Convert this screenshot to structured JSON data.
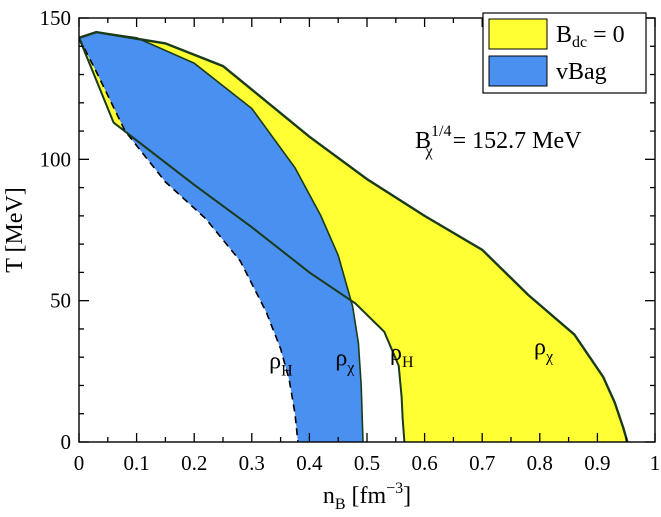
{
  "chart_data": {
    "type": "area",
    "xlabel": {
      "main": "n",
      "sub": "B",
      "unit": "[fm",
      "exp": "−3",
      "close": "]"
    },
    "ylabel": "T [MeV]",
    "xlim": [
      0,
      1
    ],
    "ylim": [
      0,
      150
    ],
    "x_ticks": [
      0,
      0.1,
      0.2,
      0.3,
      0.4,
      0.5,
      0.6,
      0.7,
      0.8,
      0.9,
      1
    ],
    "x_tick_labels": [
      "0",
      "0.1",
      "0.2",
      "0.3",
      "0.4",
      "0.5",
      "0.6",
      "0.7",
      "0.8",
      "0.9",
      "1"
    ],
    "y_ticks": [
      0,
      50,
      100,
      150
    ],
    "y_tick_labels": [
      "0",
      "50",
      "100",
      "150"
    ],
    "legend": {
      "placement": "top-right",
      "entries": [
        {
          "main": "B",
          "sub": "dc",
          "rest": " = 0",
          "color": "#ffff33"
        },
        {
          "main": "vBag",
          "sub": "",
          "rest": "",
          "color": "#4a90f0"
        }
      ]
    },
    "annotation": {
      "main": "B",
      "sub": "χ",
      "sup": "1/4",
      "rest": " = 152.7 MeV"
    },
    "curve_labels": [
      {
        "main": "ρ",
        "sub": "H",
        "x": 0.33,
        "y": 26
      },
      {
        "main": "ρ",
        "sub": "χ",
        "x": 0.445,
        "y": 27
      },
      {
        "main": "ρ",
        "sub": "H",
        "x": 0.54,
        "y": 29
      },
      {
        "main": "ρ",
        "sub": "χ",
        "x": 0.79,
        "y": 31
      }
    ],
    "series": [
      {
        "name": "B_dc = 0",
        "color": "#ffff33",
        "outer": [
          [
            0.0,
            143
          ],
          [
            0.03,
            145
          ],
          [
            0.15,
            141
          ],
          [
            0.25,
            133
          ],
          [
            0.31,
            123
          ],
          [
            0.4,
            108
          ],
          [
            0.5,
            93
          ],
          [
            0.6,
            80
          ],
          [
            0.7,
            68
          ],
          [
            0.78,
            52
          ],
          [
            0.86,
            38
          ],
          [
            0.91,
            23
          ],
          [
            0.93,
            14
          ],
          [
            0.945,
            5
          ],
          [
            0.952,
            0
          ]
        ],
        "inner": [
          [
            0.0,
            143
          ],
          [
            0.06,
            113
          ],
          [
            0.2,
            91
          ],
          [
            0.3,
            76
          ],
          [
            0.4,
            60
          ],
          [
            0.48,
            49
          ],
          [
            0.53,
            39
          ],
          [
            0.555,
            27
          ],
          [
            0.56,
            16
          ],
          [
            0.562,
            8
          ],
          [
            0.565,
            0
          ]
        ]
      },
      {
        "name": "vBag",
        "color": "#4a90f0",
        "outer": [
          [
            0.0,
            143
          ],
          [
            0.03,
            145
          ],
          [
            0.1,
            143
          ],
          [
            0.2,
            134
          ],
          [
            0.3,
            118
          ],
          [
            0.375,
            97
          ],
          [
            0.42,
            80
          ],
          [
            0.45,
            66
          ],
          [
            0.475,
            48
          ],
          [
            0.485,
            35
          ],
          [
            0.49,
            20
          ],
          [
            0.493,
            0
          ]
        ],
        "inner": [
          [
            0.0,
            143
          ],
          [
            0.03,
            131
          ],
          [
            0.08,
            110
          ],
          [
            0.15,
            92
          ],
          [
            0.22,
            79
          ],
          [
            0.28,
            64
          ],
          [
            0.325,
            46
          ],
          [
            0.35,
            33
          ],
          [
            0.365,
            22
          ],
          [
            0.375,
            10
          ],
          [
            0.38,
            0
          ]
        ]
      }
    ]
  }
}
